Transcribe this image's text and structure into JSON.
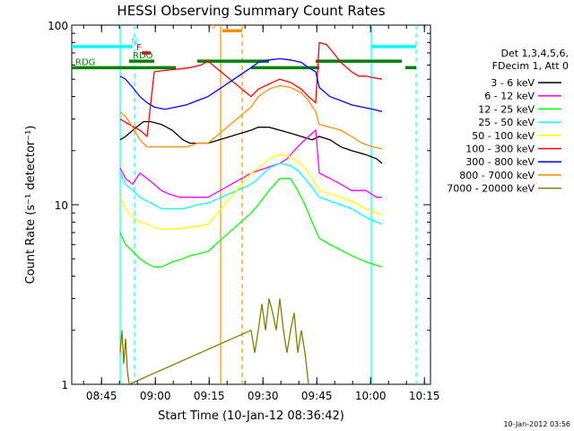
{
  "chart_data": {
    "type": "line",
    "title": "HESSI Observing Summary Count Rates",
    "xlabel": "Start Time (10-Jan-12 08:36:42)",
    "ylabel": "Count Rate (s⁻¹ detector⁻¹)",
    "yscale": "log",
    "ylim": [
      1,
      100
    ],
    "xlim_minutes_from_start": [
      0,
      100
    ],
    "x_tick_labels": [
      "08:45",
      "09:00",
      "09:15",
      "09:30",
      "09:45",
      "10:00",
      "10:15"
    ],
    "x_tick_minutes": [
      8.3,
      23.3,
      38.3,
      53.3,
      68.3,
      83.3,
      98.3
    ],
    "y_tick_labels": [
      "1",
      "10",
      "100"
    ],
    "y_tick_values": [
      1,
      10,
      100
    ],
    "footer": "10-Jan-2012 03:56",
    "legend_header": [
      "Det 1,3,4,5,6,",
      "FDecim 1, Att 0"
    ],
    "series": [
      {
        "name": "3 - 6 keV",
        "color": "#000000",
        "x": [
          13.5,
          15,
          18,
          20,
          22,
          25,
          28,
          31,
          33,
          35,
          38,
          50,
          52,
          55,
          58,
          61,
          64,
          67,
          69,
          72,
          75,
          78,
          82,
          85,
          86.5
        ],
        "y": [
          23,
          24,
          27,
          29,
          29,
          28,
          26,
          23,
          22,
          22,
          22,
          26,
          27,
          27,
          26,
          25,
          24,
          23,
          24,
          23,
          21,
          20,
          19,
          18,
          17
        ]
      },
      {
        "name": "6 - 12 keV",
        "color": "#ff00ff",
        "x": [
          13.5,
          15,
          17,
          19,
          21,
          23,
          25,
          27,
          30,
          33,
          35,
          38,
          50,
          52,
          54,
          56,
          58,
          60,
          62,
          64,
          66,
          68,
          69,
          72,
          75,
          78,
          82,
          85,
          86.5
        ],
        "y": [
          16,
          14,
          13,
          15,
          14,
          13,
          12,
          11.5,
          11,
          11,
          11,
          11,
          15,
          15.5,
          16,
          16.5,
          17,
          18,
          20,
          22,
          24,
          26,
          15,
          14,
          13,
          12,
          12,
          11,
          11
        ]
      },
      {
        "name": "12 - 25 keV",
        "color": "#00ff00",
        "x": [
          13.5,
          15,
          17,
          19,
          21,
          23,
          25,
          28,
          31,
          33,
          35,
          38,
          50,
          52,
          55,
          58,
          61,
          63,
          65,
          67,
          69,
          72,
          75,
          78,
          80,
          82,
          85,
          86.5
        ],
        "y": [
          7,
          6,
          5.5,
          5,
          4.7,
          4.5,
          4.5,
          4.8,
          5,
          5.2,
          5.3,
          5.5,
          9,
          10,
          12,
          14,
          14,
          12,
          10,
          8,
          6.5,
          6,
          5.6,
          5.2,
          5,
          4.8,
          4.6,
          4.5
        ]
      },
      {
        "name": "25 - 50 keV",
        "color": "#00ffff",
        "x": [
          13.5,
          15,
          17,
          19,
          21,
          23,
          25,
          28,
          31,
          33,
          35,
          38,
          50,
          52,
          55,
          58,
          61,
          63,
          65,
          67,
          69,
          72,
          75,
          78,
          80,
          82,
          85,
          86.5
        ],
        "y": [
          15,
          13,
          12,
          11,
          10.5,
          10,
          9.5,
          9.5,
          9.5,
          9.7,
          10,
          10.2,
          13,
          14,
          16,
          17,
          16.5,
          15.5,
          14,
          12.5,
          11,
          10.5,
          10,
          9.5,
          9,
          8.5,
          8,
          7.8
        ]
      },
      {
        "name": "50 - 100 keV",
        "color": "#ffff00",
        "x": [
          13.5,
          15,
          17,
          19,
          21,
          23,
          25,
          28,
          31,
          33,
          35,
          38,
          50,
          52,
          55,
          58,
          61,
          63,
          65,
          67,
          69,
          72,
          75,
          78,
          80,
          82,
          85,
          86.5
        ],
        "y": [
          11,
          9.5,
          8.5,
          8,
          7.8,
          7.5,
          7.3,
          7.3,
          7.4,
          7.5,
          7.6,
          7.8,
          15,
          16,
          18,
          19,
          18.5,
          17.5,
          16,
          14,
          12,
          11.5,
          11,
          10.5,
          10,
          9.5,
          9,
          8.8
        ]
      },
      {
        "name": "100 - 300 keV",
        "color": "#ff0000",
        "x": [
          13.5,
          16,
          19,
          21,
          23,
          26,
          30,
          33,
          36,
          38,
          50,
          52,
          55,
          58,
          61,
          64,
          66,
          68,
          69,
          71,
          73,
          75,
          78,
          80,
          82,
          84,
          86.5
        ],
        "y": [
          30,
          28,
          26,
          24,
          55,
          56,
          57,
          58,
          60,
          63,
          40,
          44,
          47,
          50,
          48,
          44,
          40,
          37,
          80,
          78,
          70,
          62,
          55,
          52,
          52,
          51,
          50
        ]
      },
      {
        "name": "300 - 800 keV",
        "color": "#0000ff",
        "x": [
          13.5,
          15,
          17,
          19,
          21,
          23,
          26,
          29,
          32,
          35,
          38,
          50,
          52,
          55,
          58,
          61,
          64,
          66,
          68,
          69,
          72,
          75,
          78,
          81,
          84,
          86.5
        ],
        "y": [
          52,
          50,
          45,
          40,
          37,
          35,
          34,
          35,
          36,
          38,
          40,
          58,
          62,
          64,
          65,
          64,
          62,
          58,
          55,
          45,
          40,
          38,
          36,
          35,
          34,
          33
        ]
      },
      {
        "name": "800 - 7000 keV",
        "color": "#ff8c00",
        "x": [
          13.5,
          15,
          17,
          19,
          21,
          23,
          26,
          29,
          32,
          35,
          38,
          50,
          52,
          55,
          58,
          61,
          64,
          66,
          68,
          69,
          72,
          75,
          78,
          81,
          84,
          86.5
        ],
        "y": [
          33,
          31,
          27,
          23,
          21,
          21,
          21,
          21,
          21,
          22,
          22,
          35,
          40,
          44,
          46,
          45,
          42,
          38,
          33,
          28,
          27,
          26,
          24,
          22,
          21,
          20.5
        ]
      },
      {
        "name": "7000 - 20000 keV",
        "color": "#808000",
        "x": [
          13.5,
          14,
          14.5,
          15,
          15.5,
          16,
          50,
          51,
          52,
          53,
          54,
          55,
          56,
          57,
          58,
          59,
          60,
          61,
          62,
          63,
          64,
          65,
          66
        ],
        "y": [
          1.5,
          2,
          1.3,
          1.8,
          1.2,
          1,
          2,
          1.5,
          2,
          2.8,
          2,
          3,
          2.5,
          2,
          3,
          2,
          1.5,
          2,
          2.5,
          1.5,
          2,
          1.5,
          1
        ]
      }
    ],
    "flags": [
      {
        "label": "N",
        "color": "#00ffff",
        "y": 76,
        "segments": [
          [
            0,
            17
          ],
          [
            83.5,
            96
          ]
        ]
      },
      {
        "label": "F",
        "color": "#ff0000",
        "y": 70,
        "segments": [
          [
            19.5,
            22
          ]
        ]
      },
      {
        "label": "RDO",
        "color": "#008000",
        "y": 63,
        "segments": [
          [
            16,
            23
          ],
          [
            35,
            55
          ],
          [
            68,
            92
          ]
        ]
      },
      {
        "label": "RDG",
        "color": "#008000",
        "y": 58,
        "segments": [
          [
            0,
            29
          ],
          [
            50,
            69
          ],
          [
            93,
            96
          ]
        ]
      },
      {
        "label": "S",
        "color": "#ff8c00",
        "y": 93,
        "segments": [
          [
            42,
            47.5
          ]
        ]
      }
    ],
    "vlines": [
      {
        "x": 13.5,
        "color": "#00ffff",
        "style": "solid"
      },
      {
        "x": 17.5,
        "color": "#00ffff",
        "style": "dashed"
      },
      {
        "x": 83.5,
        "color": "#00ffff",
        "style": "solid"
      },
      {
        "x": 96.0,
        "color": "#00ffff",
        "style": "dashed"
      },
      {
        "x": 41.5,
        "color": "#ff8c00",
        "style": "solid"
      },
      {
        "x": 47.5,
        "color": "#ff8c00",
        "style": "dashed"
      }
    ]
  }
}
